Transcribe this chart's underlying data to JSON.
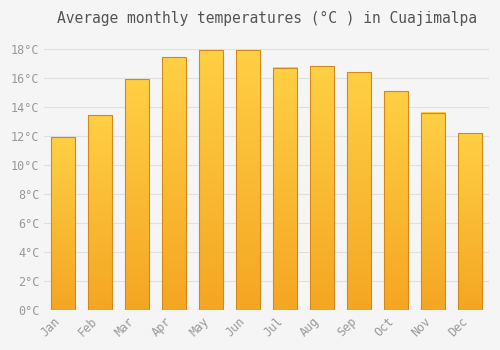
{
  "title": "Average monthly temperatures (°C ) in Cuajimalpa",
  "months": [
    "Jan",
    "Feb",
    "Mar",
    "Apr",
    "May",
    "Jun",
    "Jul",
    "Aug",
    "Sep",
    "Oct",
    "Nov",
    "Dec"
  ],
  "temperatures": [
    11.9,
    13.4,
    15.9,
    17.4,
    17.9,
    17.9,
    16.7,
    16.8,
    16.4,
    15.1,
    13.6,
    12.2
  ],
  "bar_color_top": "#FFCF44",
  "bar_color_bottom": "#F5A623",
  "bar_color_edge": "#D4881A",
  "background_color": "#F5F5F5",
  "grid_color": "#E0E0E0",
  "tick_label_color": "#999999",
  "title_color": "#555555",
  "ylim": [
    0,
    19
  ],
  "ytick_step": 2,
  "title_fontsize": 10.5,
  "tick_fontsize": 8.5
}
